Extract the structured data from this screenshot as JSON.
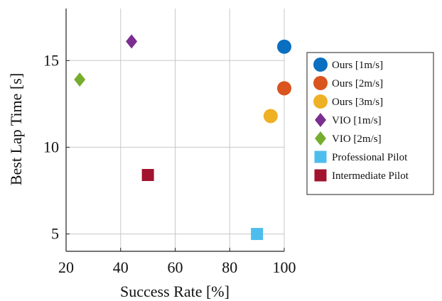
{
  "chart_data": {
    "type": "scatter",
    "xlabel": "Success Rate [%]",
    "ylabel": "Best Lap Time [s]",
    "xlim": [
      20,
      100
    ],
    "ylim": [
      4,
      18
    ],
    "x_ticks": [
      20,
      40,
      60,
      80,
      100
    ],
    "y_ticks": [
      5,
      10,
      15
    ],
    "grid": true,
    "legend_position": "right",
    "series": [
      {
        "name": "Ours [1m/s]",
        "marker": "circle",
        "color": "#0a6fc0",
        "points": [
          {
            "x": 100,
            "y": 15.8
          }
        ]
      },
      {
        "name": "Ours [2m/s]",
        "marker": "circle",
        "color": "#d9541e",
        "points": [
          {
            "x": 100,
            "y": 13.4
          }
        ]
      },
      {
        "name": "Ours [3m/s]",
        "marker": "circle",
        "color": "#eeb126",
        "points": [
          {
            "x": 95,
            "y": 11.8
          }
        ]
      },
      {
        "name": "VIO [1m/s]",
        "marker": "diamond",
        "color": "#7c2e90",
        "points": [
          {
            "x": 44,
            "y": 16.1
          }
        ]
      },
      {
        "name": "VIO [2m/s]",
        "marker": "diamond",
        "color": "#76ad2f",
        "points": [
          {
            "x": 25,
            "y": 13.9
          }
        ]
      },
      {
        "name": "Professional Pilot",
        "marker": "square",
        "color": "#4dbdee",
        "points": [
          {
            "x": 90,
            "y": 5.0
          }
        ]
      },
      {
        "name": "Intermediate Pilot",
        "marker": "square",
        "color": "#a2132f",
        "points": [
          {
            "x": 50,
            "y": 8.4
          }
        ]
      }
    ]
  }
}
